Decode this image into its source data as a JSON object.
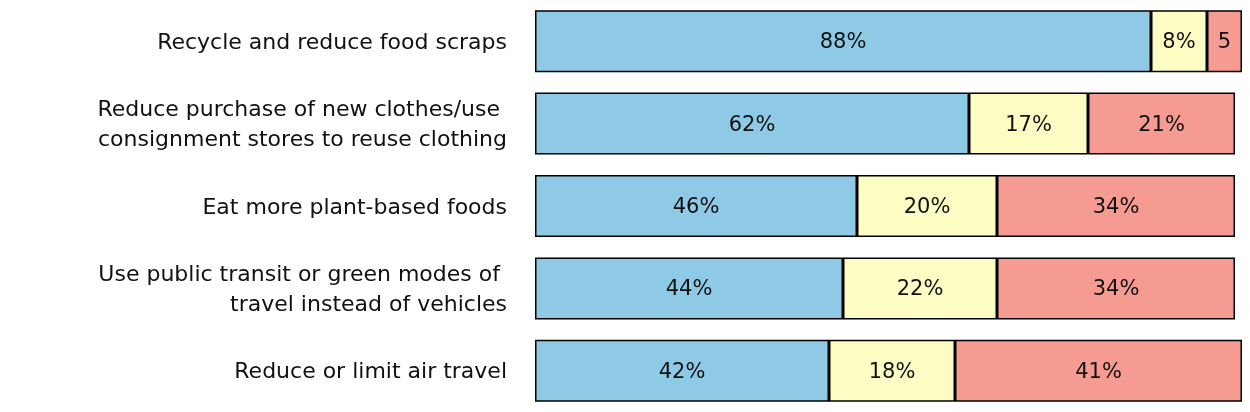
{
  "chart_data": {
    "type": "bar",
    "orientation": "horizontal",
    "stacked": true,
    "categories": [
      "Recycle and reduce food scraps",
      "Reduce purchase of new clothes/use consignment stores to reuse clothing",
      "Eat more plant-based foods",
      "Use public transit or green modes of travel instead of vehicles",
      "Reduce or limit air travel"
    ],
    "series": [
      {
        "color": "#8ecae6",
        "values": [
          88,
          62,
          46,
          44,
          42
        ],
        "value_labels": [
          "88%",
          "62%",
          "46%",
          "44%",
          "42%"
        ]
      },
      {
        "color": "#fdfdc3",
        "values": [
          8,
          17,
          20,
          22,
          18
        ],
        "value_labels": [
          "8%",
          "17%",
          "20%",
          "22%",
          "18%"
        ]
      },
      {
        "color": "#f59b92",
        "values": [
          5,
          21,
          34,
          34,
          41
        ],
        "value_labels": [
          "5",
          "21%",
          "34%",
          "34%",
          "41%"
        ]
      }
    ]
  }
}
